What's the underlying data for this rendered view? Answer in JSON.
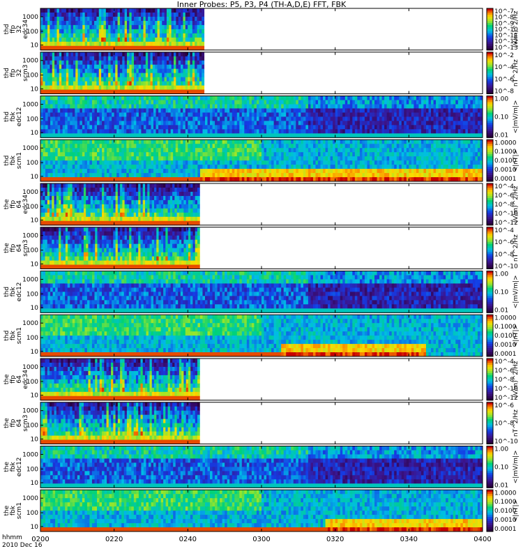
{
  "chart_data": {
    "type": "heatmap",
    "title": "Inner Probes: P5, P3, P4 (TH-A,D,E) FFT, FBK",
    "time_label": "hhmm",
    "date_label": "2010 Dec 16",
    "x_ticks": [
      "0200",
      "0220",
      "0240",
      "0300",
      "0320",
      "0340",
      "0400"
    ],
    "colors": {
      "low": "#3a0a55",
      "mid": "#00c8a0",
      "high": "#d80000"
    },
    "panels": [
      {
        "label": [
          "thd",
          "ffp",
          "32",
          "edc34"
        ],
        "y_ticks": [
          "1000",
          "100",
          "10"
        ],
        "cbar_ticks": [
          "10^-7",
          "10^-8",
          "10^-9",
          "10^-10",
          "10^-11",
          "10^-12",
          "10^-13"
        ],
        "unit": "(V/m)^2/Hz",
        "extent": 0.37,
        "kind": "fft",
        "probe": "thd"
      },
      {
        "label": [
          "thd",
          "ffp",
          "32",
          "scm3"
        ],
        "y_ticks": [
          "1000",
          "100",
          "10"
        ],
        "cbar_ticks": [
          "10^-2",
          "10^-4",
          "10^-6",
          "10^-8"
        ],
        "unit": "nT^2/Hz",
        "extent": 0.37,
        "kind": "fft",
        "probe": "thd"
      },
      {
        "label": [
          "thd",
          "fbk",
          "edc12"
        ],
        "y_ticks": [
          "1000",
          "100",
          "10"
        ],
        "cbar_ticks": [
          "1.00",
          "0.10",
          "0.01"
        ],
        "unit": "<|mV/m|>",
        "extent": 1.0,
        "kind": "fbk_e",
        "probe": "thd"
      },
      {
        "label": [
          "thd",
          "fbk",
          "scm1"
        ],
        "y_ticks": [
          "1000",
          "100",
          "10"
        ],
        "cbar_ticks": [
          "1.0000",
          "0.1000",
          "0.0100",
          "0.0010",
          "0.0001"
        ],
        "unit": "<|nT|>",
        "extent": 1.0,
        "kind": "fbk_b",
        "probe": "thd",
        "hot_start": 0.36,
        "hot_end": 1.0
      },
      {
        "label": [
          "the",
          "ffp",
          "64",
          "edc34"
        ],
        "y_ticks": [
          "1000",
          "100",
          "10"
        ],
        "cbar_ticks": [
          "10^-4",
          "10^-6",
          "10^-8",
          "10^-10",
          "10^-12"
        ],
        "unit": "(V/m)^2/Hz",
        "extent": 0.36,
        "kind": "fft",
        "probe": "the"
      },
      {
        "label": [
          "the",
          "ffp",
          "64",
          "scm3"
        ],
        "y_ticks": [
          "1000",
          "100",
          "10"
        ],
        "cbar_ticks": [
          "10^-4",
          "10^-6",
          "10^-8",
          "10^-10"
        ],
        "unit": "nT^2/Hz",
        "extent": 0.36,
        "kind": "fft",
        "probe": "the"
      },
      {
        "label": [
          "thd",
          "fbk",
          "edc12"
        ],
        "y_ticks": [
          "1000",
          "100",
          "10"
        ],
        "cbar_ticks": [
          "1.00",
          "0.10",
          "0.01"
        ],
        "unit": "<|mV/m|>",
        "extent": 1.0,
        "kind": "fbk_e",
        "probe": "thd"
      },
      {
        "label": [
          "thd",
          "fbk",
          "scm1"
        ],
        "y_ticks": [
          "1000",
          "100",
          "10"
        ],
        "cbar_ticks": [
          "1.0000",
          "0.1000",
          "0.0100",
          "0.0010",
          "0.0001"
        ],
        "unit": "<|nT|>",
        "extent": 1.0,
        "kind": "fbk_b",
        "probe": "thd",
        "hot_start": 0.54,
        "hot_end": 0.87
      },
      {
        "label": [
          "the",
          "ffp",
          "64",
          "edc34"
        ],
        "y_ticks": [
          "1000",
          "100",
          "10"
        ],
        "cbar_ticks": [
          "10^-4",
          "10^-6",
          "10^-8",
          "10^-10",
          "10^-12"
        ],
        "unit": "(V/m)^2/Hz",
        "extent": 0.36,
        "kind": "fft",
        "probe": "the"
      },
      {
        "label": [
          "the",
          "ffp",
          "64",
          "scm3"
        ],
        "y_ticks": [
          "1000",
          "100",
          "10"
        ],
        "cbar_ticks": [
          "10^-6",
          "10^-8",
          "10^-10"
        ],
        "unit": "nT^2/Hz",
        "extent": 0.36,
        "kind": "fft",
        "probe": "the"
      },
      {
        "label": [
          "the",
          "fbk",
          "edc12"
        ],
        "y_ticks": [
          "1000",
          "100",
          "10"
        ],
        "cbar_ticks": [
          "1.00",
          "0.10",
          "0.01"
        ],
        "unit": "<|mV/m|>",
        "extent": 1.0,
        "kind": "fbk_e",
        "probe": "the"
      },
      {
        "label": [
          "the",
          "fbk",
          "scm1"
        ],
        "y_ticks": [
          "1000",
          "100",
          "10"
        ],
        "cbar_ticks": [
          "1.0000",
          "0.1000",
          "0.0100",
          "0.0010",
          "0.0001"
        ],
        "unit": "<|nT|>",
        "extent": 1.0,
        "kind": "fbk_b",
        "probe": "the",
        "hot_start": 0.64,
        "hot_end": 1.0
      }
    ]
  }
}
